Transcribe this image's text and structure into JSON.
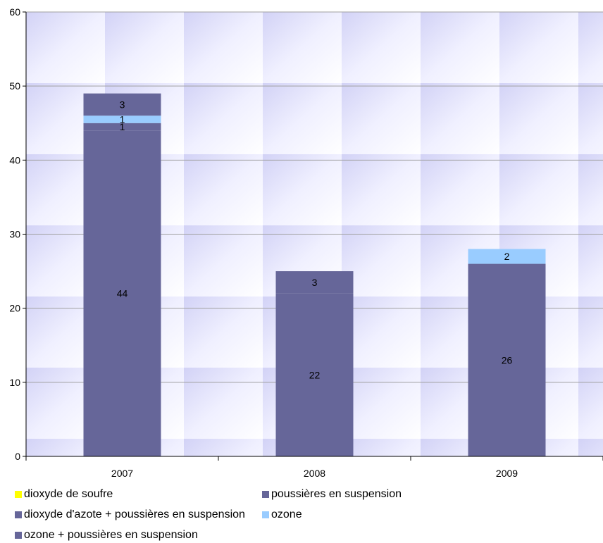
{
  "chart_data": {
    "type": "bar",
    "stacked": true,
    "categories": [
      "2007",
      "2008",
      "2009"
    ],
    "ylim": [
      0,
      60
    ],
    "yticks": [
      0,
      10,
      20,
      30,
      40,
      50,
      60
    ],
    "grid": true,
    "legend_position": "bottom",
    "series": [
      {
        "name": "dioxyde de soufre",
        "color": "#FFFF00",
        "values": [
          0,
          0,
          0
        ],
        "labels": [
          "",
          "",
          ""
        ]
      },
      {
        "name": "poussières en suspension",
        "color": "#666699",
        "values": [
          44,
          22,
          26
        ],
        "labels": [
          "44",
          "22",
          "26"
        ]
      },
      {
        "name": "dioxyde d'azote + poussières en suspension",
        "color": "#666699",
        "values": [
          1,
          3,
          0
        ],
        "labels": [
          "1",
          "3",
          ""
        ]
      },
      {
        "name": "ozone",
        "color": "#99CCFF",
        "values": [
          1,
          0,
          2
        ],
        "labels": [
          "1",
          "",
          "2"
        ]
      },
      {
        "name": "ozone + poussières en suspension",
        "color": "#666699",
        "values": [
          3,
          0,
          0
        ],
        "labels": [
          "3",
          "",
          ""
        ]
      }
    ]
  }
}
